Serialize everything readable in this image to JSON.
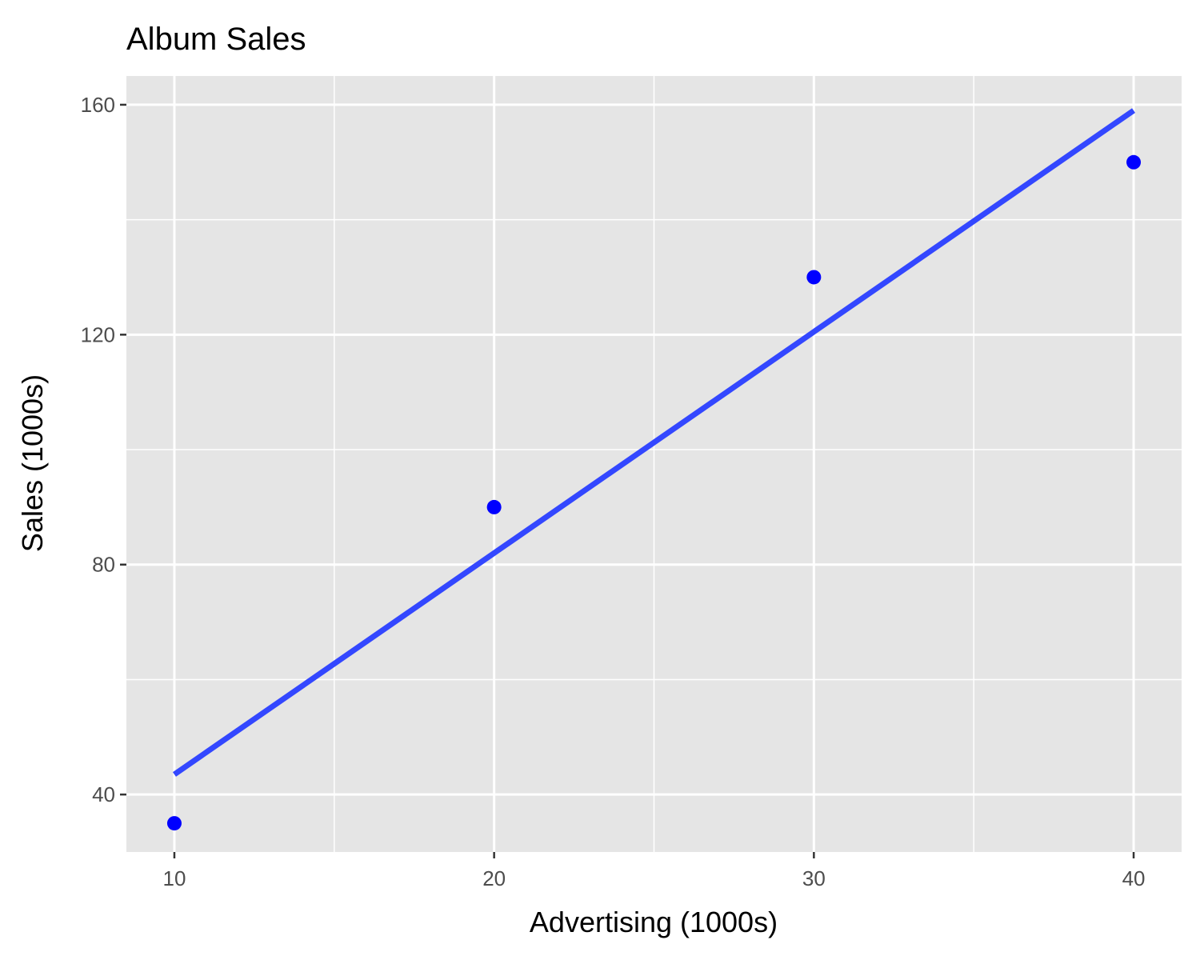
{
  "chart_data": {
    "type": "scatter",
    "title": "Album Sales",
    "xlabel": "Advertising (1000s)",
    "ylabel": "Sales (1000s)",
    "xlim": [
      8.5,
      41.5
    ],
    "ylim": [
      30,
      165
    ],
    "x_ticks": [
      10,
      20,
      30,
      40
    ],
    "x_tick_labels": [
      "10",
      "20",
      "30",
      "40"
    ],
    "y_ticks": [
      40,
      80,
      120,
      160
    ],
    "y_tick_labels": [
      "40",
      "80",
      "120",
      "160"
    ],
    "grid": true,
    "series": [
      {
        "x": [
          10,
          20,
          30,
          40
        ],
        "y": [
          35,
          90,
          130,
          150
        ],
        "color": "#0000ff"
      }
    ],
    "fit_line": {
      "x": [
        10,
        40
      ],
      "y": [
        43.5,
        159
      ],
      "color": "#3347ff"
    },
    "colors": {
      "panel_background": "#e5e5e5",
      "grid": "#ffffff",
      "points": "#0000ff",
      "line": "#3347ff",
      "tick_text": "#4d4d4d"
    }
  }
}
